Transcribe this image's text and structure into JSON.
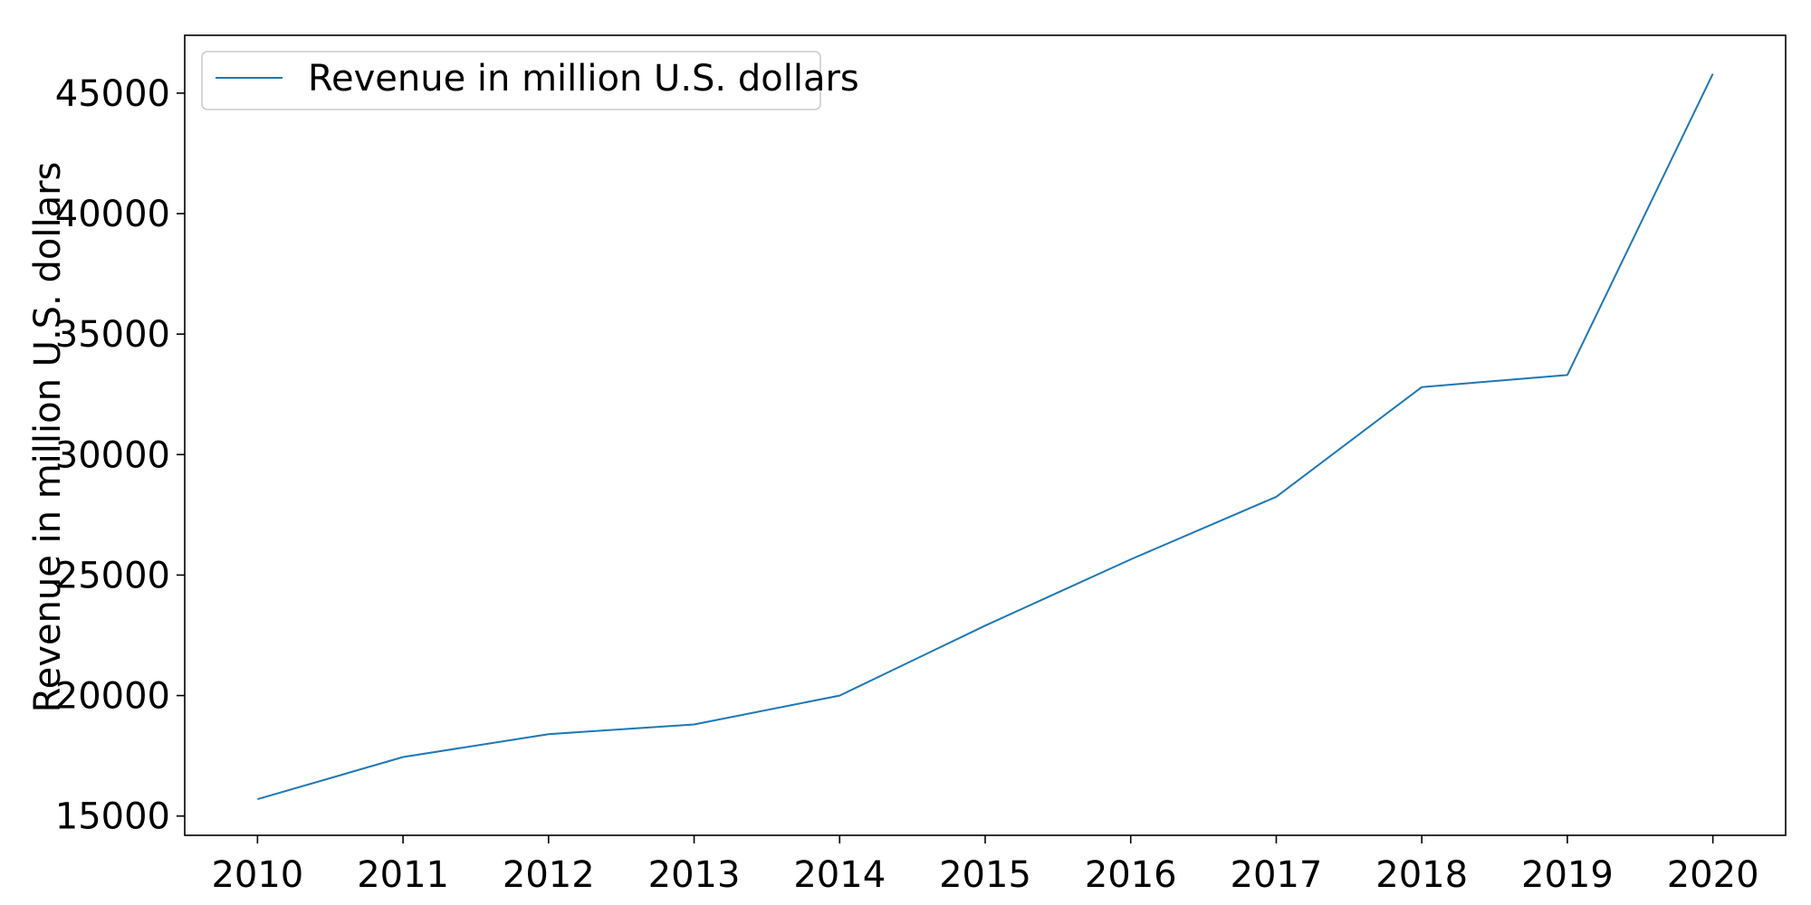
{
  "chart_data": {
    "type": "line",
    "title": "",
    "xlabel": "",
    "ylabel": "Revenue in million U.S. dollars",
    "x": [
      2010,
      2011,
      2012,
      2013,
      2014,
      2015,
      2016,
      2017,
      2018,
      2019,
      2020
    ],
    "series": [
      {
        "name": "Revenue in million U.S. dollars",
        "color": "#1f77b4",
        "values": [
          15700,
          17450,
          18400,
          18800,
          20000,
          22900,
          25650,
          28250,
          32800,
          33300,
          45800
        ]
      }
    ],
    "xticks": [
      "2010",
      "2011",
      "2012",
      "2013",
      "2014",
      "2015",
      "2016",
      "2017",
      "2018",
      "2019",
      "2020"
    ],
    "yticks": [
      "15000",
      "20000",
      "25000",
      "30000",
      "35000",
      "40000",
      "45000"
    ],
    "ytick_values": [
      15000,
      20000,
      25000,
      30000,
      35000,
      40000,
      45000
    ],
    "xlim": [
      2009.5,
      2020.5
    ],
    "ylim": [
      14200,
      47400
    ],
    "grid": false,
    "legend_position": "top-left"
  }
}
